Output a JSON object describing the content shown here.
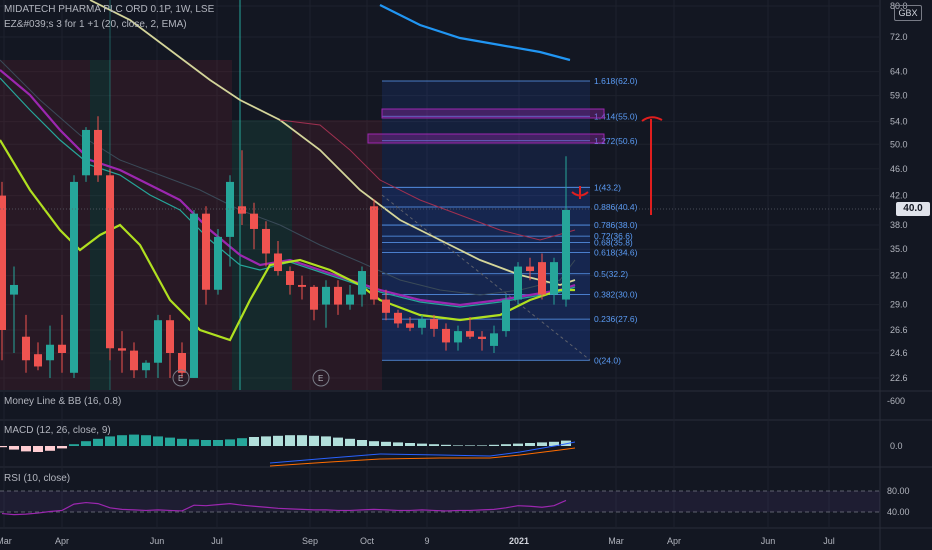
{
  "header": {
    "title": "MIDATECH PHARMA PLC ORD 0.1P, 1W, LSE",
    "indicator": "EZ&#039;s 3 for 1 +1 (20, close, 2, EMA)"
  },
  "currency": "GBX",
  "last_price": "40.0",
  "chart_data": [
    {
      "type": "candlestick",
      "pane": "price",
      "title": "MIDATECH PHARMA PLC ORD 0.1P, 1W, LSE",
      "x_labels": [
        "Mar",
        "Apr",
        "Jun",
        "Jul",
        "Sep",
        "Oct",
        "9",
        "2021",
        "Mar",
        "Apr",
        "Jun",
        "Jul"
      ],
      "y_ticks": [
        80.0,
        72.0,
        64.0,
        59.0,
        54.0,
        50.0,
        46.0,
        42.0,
        38.0,
        35.0,
        32.0,
        29.0,
        26.6,
        24.6,
        22.6
      ],
      "log_scale": true,
      "candles": [
        {
          "o": 42.0,
          "h": 44.0,
          "l": 24.0,
          "c": 26.6
        },
        {
          "o": 30.0,
          "h": 33.0,
          "l": 24.6,
          "c": 31.0
        },
        {
          "o": 26.0,
          "h": 28.0,
          "l": 23.0,
          "c": 24.0
        },
        {
          "o": 24.5,
          "h": 25.5,
          "l": 23.2,
          "c": 23.5
        },
        {
          "o": 24.0,
          "h": 27.0,
          "l": 22.6,
          "c": 25.3
        },
        {
          "o": 25.3,
          "h": 28.0,
          "l": 23.0,
          "c": 24.6
        },
        {
          "o": 23.0,
          "h": 45.0,
          "l": 22.6,
          "c": 44.0
        },
        {
          "o": 45.0,
          "h": 53.0,
          "l": 44.0,
          "c": 52.5
        },
        {
          "o": 52.5,
          "h": 55.0,
          "l": 44.0,
          "c": 45.0
        },
        {
          "o": 45.0,
          "h": 46.0,
          "l": 24.0,
          "c": 25.0
        },
        {
          "o": 25.0,
          "h": 26.5,
          "l": 23.0,
          "c": 24.8
        },
        {
          "o": 24.8,
          "h": 25.5,
          "l": 22.6,
          "c": 23.2
        },
        {
          "o": 23.2,
          "h": 24.0,
          "l": 22.6,
          "c": 23.8
        },
        {
          "o": 23.8,
          "h": 28.0,
          "l": 22.6,
          "c": 27.5
        },
        {
          "o": 27.5,
          "h": 28.0,
          "l": 22.6,
          "c": 24.6
        },
        {
          "o": 24.6,
          "h": 25.5,
          "l": 22.6,
          "c": 23.0
        },
        {
          "o": 22.6,
          "h": 40.0,
          "l": 22.6,
          "c": 39.5
        },
        {
          "o": 39.5,
          "h": 40.5,
          "l": 29.0,
          "c": 30.5
        },
        {
          "o": 30.5,
          "h": 37.5,
          "l": 30.0,
          "c": 36.5
        },
        {
          "o": 36.5,
          "h": 45.0,
          "l": 33.0,
          "c": 44.0
        },
        {
          "o": 40.5,
          "h": 49.0,
          "l": 38.0,
          "c": 39.5
        },
        {
          "o": 39.5,
          "h": 41.0,
          "l": 35.0,
          "c": 37.5
        },
        {
          "o": 37.5,
          "h": 38.5,
          "l": 33.0,
          "c": 34.5
        },
        {
          "o": 34.5,
          "h": 36.0,
          "l": 32.0,
          "c": 32.5
        },
        {
          "o": 32.5,
          "h": 33.0,
          "l": 30.0,
          "c": 31.0
        },
        {
          "o": 31.0,
          "h": 32.0,
          "l": 29.5,
          "c": 30.8
        },
        {
          "o": 30.8,
          "h": 31.0,
          "l": 27.5,
          "c": 28.5
        },
        {
          "o": 29.0,
          "h": 31.5,
          "l": 26.8,
          "c": 30.8
        },
        {
          "o": 30.8,
          "h": 31.5,
          "l": 28.0,
          "c": 29.0
        },
        {
          "o": 29.0,
          "h": 31.0,
          "l": 28.5,
          "c": 30.0
        },
        {
          "o": 30.0,
          "h": 33.0,
          "l": 28.8,
          "c": 32.5
        },
        {
          "o": 40.5,
          "h": 41.5,
          "l": 29.0,
          "c": 29.5
        },
        {
          "o": 29.5,
          "h": 30.5,
          "l": 27.5,
          "c": 28.2
        },
        {
          "o": 28.2,
          "h": 28.5,
          "l": 26.8,
          "c": 27.2
        },
        {
          "o": 27.2,
          "h": 27.8,
          "l": 26.5,
          "c": 26.8
        },
        {
          "o": 26.8,
          "h": 28.0,
          "l": 26.2,
          "c": 27.6
        },
        {
          "o": 27.6,
          "h": 28.0,
          "l": 26.0,
          "c": 26.7
        },
        {
          "o": 26.7,
          "h": 27.2,
          "l": 24.8,
          "c": 25.5
        },
        {
          "o": 25.5,
          "h": 27.0,
          "l": 24.8,
          "c": 26.5
        },
        {
          "o": 26.5,
          "h": 27.8,
          "l": 25.8,
          "c": 26.0
        },
        {
          "o": 26.0,
          "h": 26.5,
          "l": 24.8,
          "c": 25.8
        },
        {
          "o": 25.2,
          "h": 27.0,
          "l": 24.6,
          "c": 26.3
        },
        {
          "o": 26.5,
          "h": 30.0,
          "l": 26.0,
          "c": 29.5
        },
        {
          "o": 29.5,
          "h": 33.5,
          "l": 29.0,
          "c": 33.0
        },
        {
          "o": 33.0,
          "h": 34.0,
          "l": 31.5,
          "c": 32.5
        },
        {
          "o": 33.5,
          "h": 34.5,
          "l": 29.5,
          "c": 30.0
        },
        {
          "o": 30.0,
          "h": 34.0,
          "l": 29.0,
          "c": 33.5
        },
        {
          "o": 29.5,
          "h": 48.0,
          "l": 28.8,
          "c": 40.0
        }
      ]
    },
    {
      "type": "fibonacci",
      "pane": "price",
      "levels": [
        {
          "label": "1.618(62.0)",
          "price": 62.0
        },
        {
          "label": "1.414(55.0)",
          "price": 55.0
        },
        {
          "label": "1.272(50.6)",
          "price": 50.6
        },
        {
          "label": "1(43.2)",
          "price": 43.2
        },
        {
          "label": "0.886(40.4)",
          "price": 40.4
        },
        {
          "label": "0.786(38.0)",
          "price": 38.0
        },
        {
          "label": "0.72(36.6)",
          "price": 36.6
        },
        {
          "label": "0.68(35.8)",
          "price": 35.8
        },
        {
          "label": "0.618(34.6)",
          "price": 34.6
        },
        {
          "label": "0.5(32.2)",
          "price": 32.2
        },
        {
          "label": "0.382(30.0)",
          "price": 30.0
        },
        {
          "label": "0.236(27.6)",
          "price": 27.6
        },
        {
          "label": "0(24.0)",
          "price": 24.0
        }
      ]
    },
    {
      "type": "line",
      "pane": "money-line",
      "title": "Money Line & BB (16, 0.8)",
      "y_ticks": [
        -600
      ]
    },
    {
      "type": "bar",
      "pane": "macd",
      "title": "MACD (12, 26, close, 9)",
      "y_ticks": [
        0.0
      ],
      "histogram": [
        -0.2,
        -0.6,
        -0.9,
        -1.0,
        -0.8,
        -0.4,
        0.3,
        0.8,
        1.2,
        1.6,
        1.8,
        1.9,
        1.8,
        1.6,
        1.4,
        1.2,
        1.1,
        1.0,
        1.0,
        1.1,
        1.3,
        1.5,
        1.6,
        1.7,
        1.8,
        1.8,
        1.7,
        1.6,
        1.4,
        1.2,
        1.0,
        0.8,
        0.7,
        0.6,
        0.5,
        0.4,
        0.3,
        0.2,
        0.1,
        0.1,
        0.1,
        0.2,
        0.3,
        0.4,
        0.5,
        0.6,
        0.7,
        0.9
      ]
    },
    {
      "type": "line",
      "pane": "rsi",
      "title": "RSI (10, close)",
      "y_ticks": [
        80.0,
        40.0
      ],
      "values": [
        37,
        35,
        36,
        38,
        41,
        43,
        55,
        58,
        56,
        48,
        45,
        44,
        43,
        44,
        43,
        42,
        53,
        52,
        54,
        56,
        53,
        51,
        49,
        47,
        46,
        45,
        44,
        44,
        43,
        43,
        44,
        45,
        44,
        43,
        43,
        44,
        43,
        42,
        43,
        43,
        44,
        45,
        48,
        52,
        51,
        49,
        52,
        62
      ]
    }
  ]
}
